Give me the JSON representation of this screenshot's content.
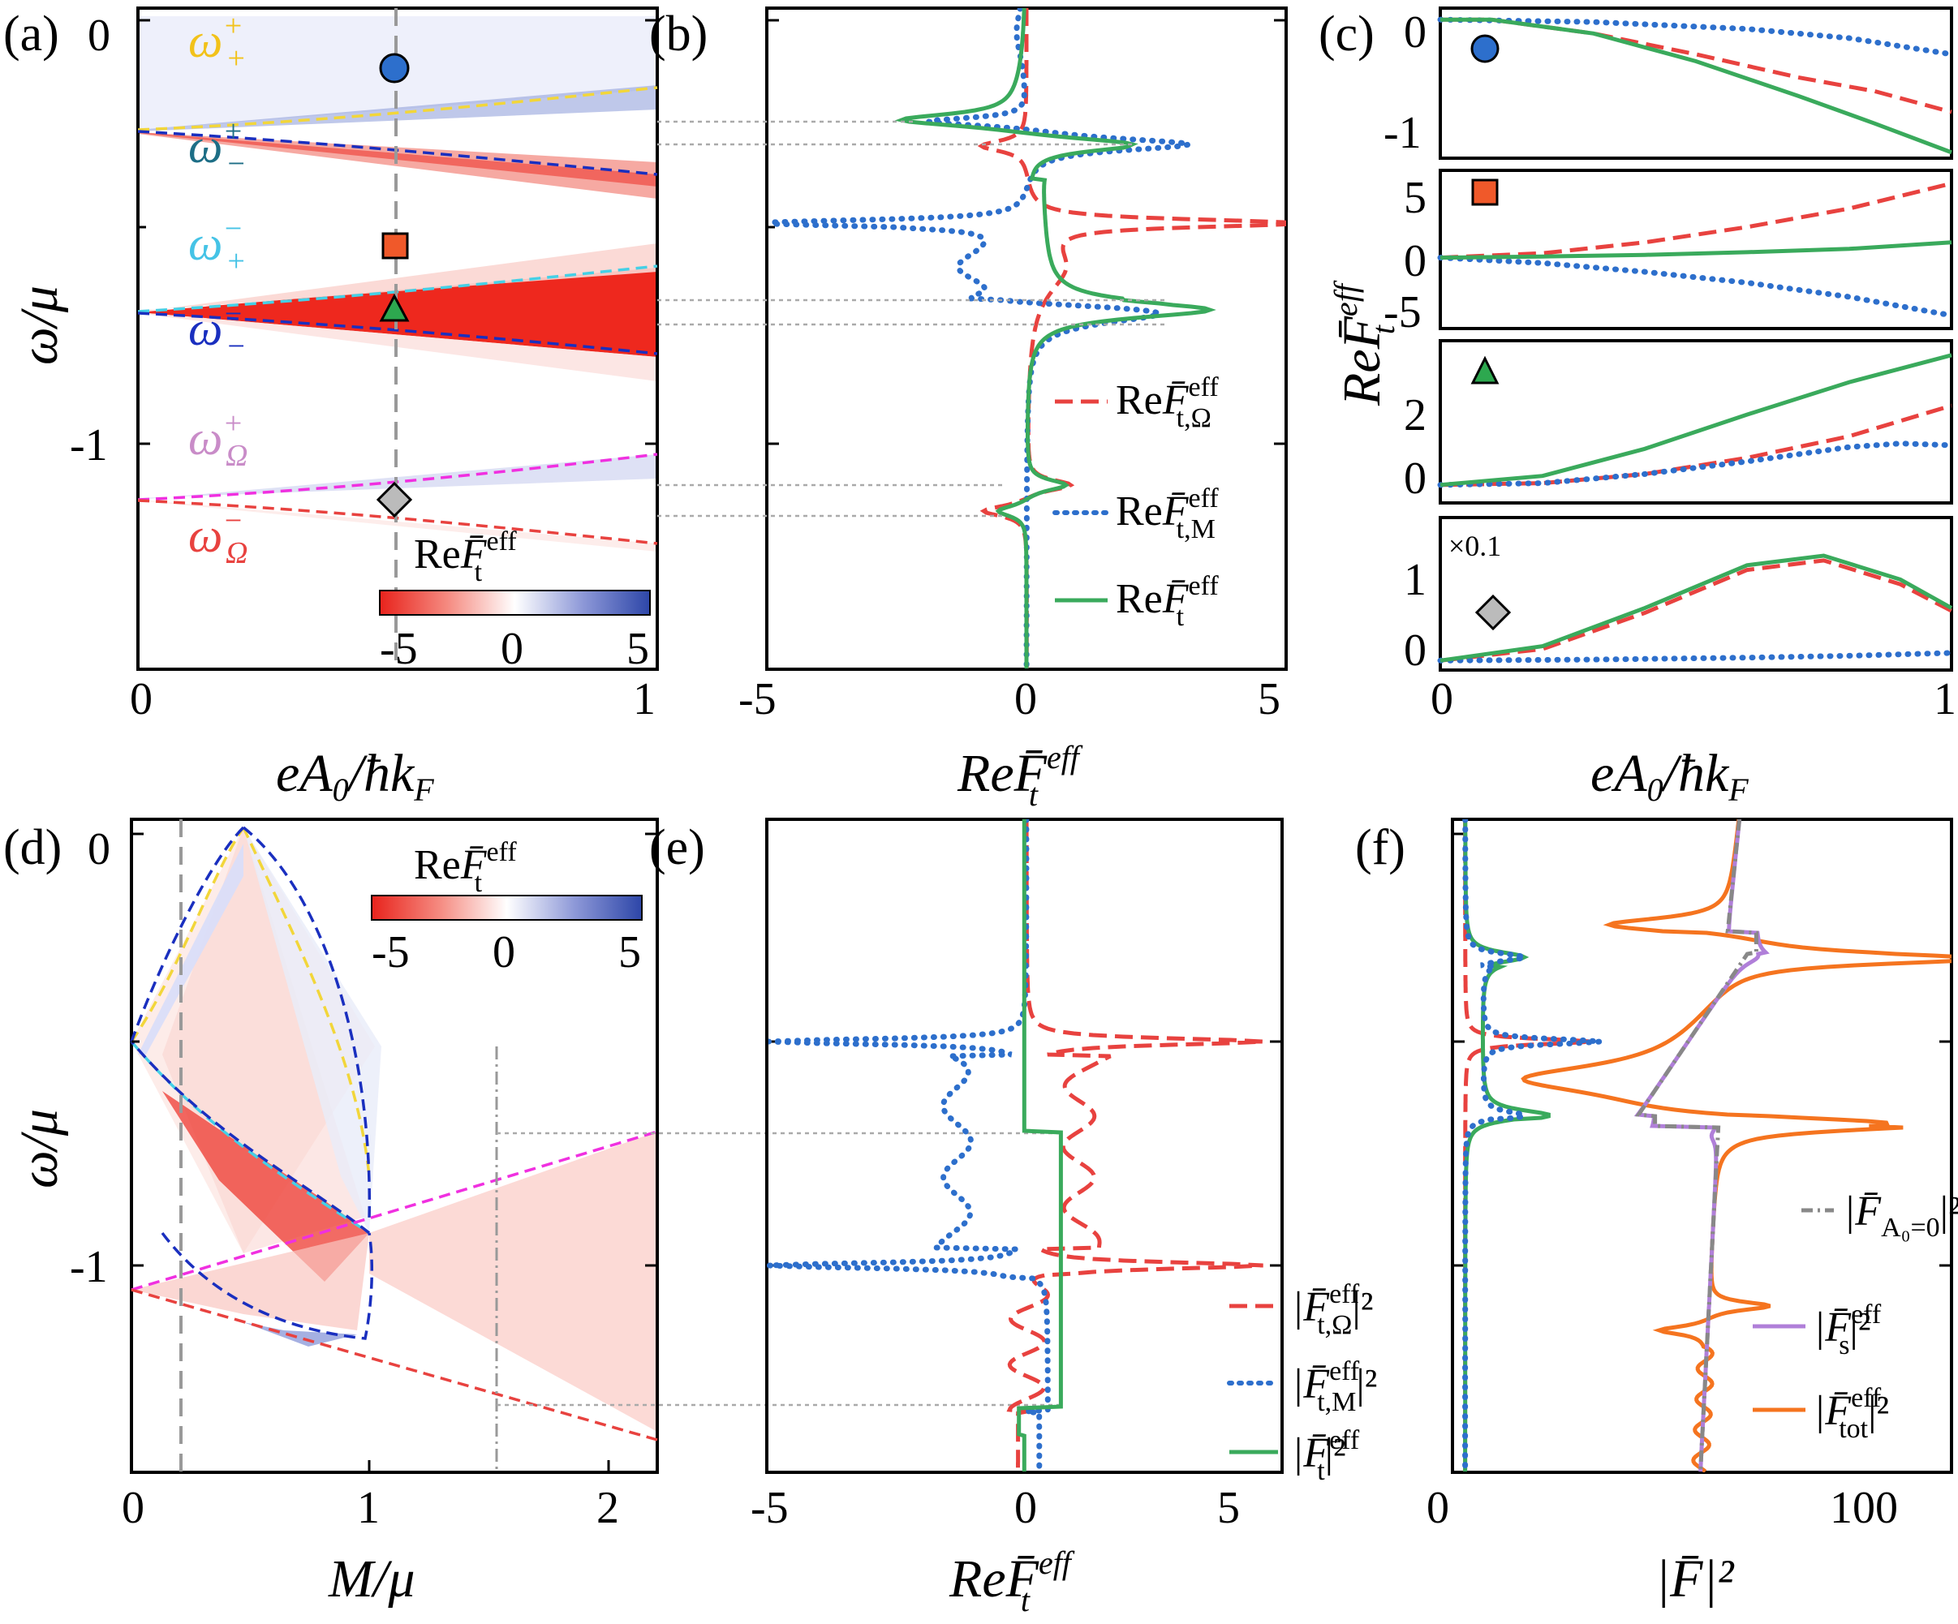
{
  "figure": {
    "panel_labels": [
      "(a)",
      "(b)",
      "(c)",
      "(d)",
      "(e)",
      "(f)"
    ],
    "colors": {
      "red": "#e8423f",
      "blue": "#2d6fcc",
      "green": "#3aaa5c",
      "orange": "#f5741f",
      "purple": "#b07fd9",
      "gray": "#888888",
      "yellow": "#f2d63a",
      "darkblue": "#1a2fbf",
      "cyan": "#45d0e6",
      "magenta": "#f030e0",
      "teal": "#1d6e86"
    }
  },
  "chart_data": [
    {
      "panel": "(a)",
      "type": "heatmap",
      "xlabel": "eA0/ħkF",
      "ylabel": "ω/μ",
      "xlim": [
        0,
        1
      ],
      "ylim": [
        -1.5,
        0.05
      ],
      "xticks": [
        "0",
        "1"
      ],
      "yticks": [
        "0",
        "-1"
      ],
      "marker_x": 0.5,
      "curve_labels": [
        {
          "text": "ω",
          "sup": "+",
          "sub": "+",
          "color": "#f2c21a",
          "y": -0.1
        },
        {
          "text": "ω",
          "sup": "+",
          "sub": "−",
          "color": "#1d6e86",
          "y": -0.33
        },
        {
          "text": "ω",
          "sup": "−",
          "sub": "+",
          "color": "#45c3e6",
          "y": -0.55
        },
        {
          "text": "ω",
          "sup": "−",
          "sub": "−",
          "color": "#1a2fbf",
          "y": -0.77
        },
        {
          "text": "ω",
          "sup": "+",
          "sub": "Ω",
          "color": "#c98cc8",
          "y": -1.0
        },
        {
          "text": "ω",
          "sup": "−",
          "sub": "Ω",
          "color": "#e8423f",
          "y": -1.23
        }
      ],
      "colorbar": {
        "title": "ReF̄t^eff",
        "ticks": [
          "-5",
          "0",
          "5"
        ],
        "range": [
          -5,
          5
        ]
      }
    },
    {
      "panel": "(b)",
      "type": "line",
      "xlabel": "ReF̄t^eff",
      "xlim": [
        -5.2,
        5.2
      ],
      "xticks": [
        "-5",
        "0",
        "5"
      ],
      "series": [
        {
          "name": "ReF̄t,Ω^eff",
          "style": "dashed",
          "color": "#e8423f"
        },
        {
          "name": "ReF̄t,M^eff",
          "style": "dotted",
          "color": "#2d6fcc"
        },
        {
          "name": "ReF̄t^eff",
          "style": "solid",
          "color": "#3aaa5c"
        }
      ]
    },
    {
      "panel": "(c)",
      "type": "line",
      "xlabel": "eA0/ħkF",
      "ylabel": "ReF̄t^eff",
      "xticks": [
        "0",
        "1"
      ],
      "subplots": [
        {
          "marker": "circle",
          "ylim": [
            -1.2,
            0.1
          ],
          "yticks": [
            "0",
            "-1"
          ],
          "red": [
            [
              0,
              0
            ],
            [
              0.1,
              0
            ],
            [
              0.3,
              -0.12
            ],
            [
              0.5,
              -0.3
            ],
            [
              0.7,
              -0.5
            ],
            [
              0.85,
              -0.62
            ],
            [
              1,
              -0.8
            ]
          ],
          "blue": [
            [
              0,
              0
            ],
            [
              0.3,
              -0.02
            ],
            [
              0.6,
              -0.08
            ],
            [
              0.8,
              -0.16
            ],
            [
              1,
              -0.3
            ]
          ],
          "green": [
            [
              0,
              0
            ],
            [
              0.1,
              0
            ],
            [
              0.3,
              -0.12
            ],
            [
              0.5,
              -0.36
            ],
            [
              0.7,
              -0.66
            ],
            [
              0.85,
              -0.9
            ],
            [
              1,
              -1.15
            ]
          ]
        },
        {
          "marker": "square",
          "ylim": [
            -6.5,
            8
          ],
          "yticks": [
            "5",
            "0",
            "-5"
          ],
          "red": [
            [
              0,
              0
            ],
            [
              0.2,
              0.4
            ],
            [
              0.4,
              1.4
            ],
            [
              0.6,
              2.8
            ],
            [
              0.8,
              4.5
            ],
            [
              1,
              6.8
            ]
          ],
          "blue": [
            [
              0,
              0
            ],
            [
              0.2,
              -0.5
            ],
            [
              0.4,
              -1.3
            ],
            [
              0.6,
              -2.3
            ],
            [
              0.8,
              -3.6
            ],
            [
              1,
              -5.3
            ]
          ],
          "green": [
            [
              0,
              0
            ],
            [
              0.2,
              0.1
            ],
            [
              0.4,
              0.25
            ],
            [
              0.6,
              0.5
            ],
            [
              0.8,
              0.8
            ],
            [
              1,
              1.4
            ]
          ]
        },
        {
          "marker": "triangle",
          "ylim": [
            -0.5,
            4
          ],
          "yticks": [
            "2",
            "0"
          ],
          "red": [
            [
              0,
              0
            ],
            [
              0.2,
              0.05
            ],
            [
              0.4,
              0.3
            ],
            [
              0.6,
              0.75
            ],
            [
              0.8,
              1.35
            ],
            [
              1,
              2.2
            ]
          ],
          "blue": [
            [
              0,
              0
            ],
            [
              0.2,
              0.05
            ],
            [
              0.4,
              0.3
            ],
            [
              0.6,
              0.65
            ],
            [
              0.8,
              1.05
            ],
            [
              0.9,
              1.15
            ],
            [
              1,
              1.1
            ]
          ],
          "green": [
            [
              0,
              0
            ],
            [
              0.2,
              0.25
            ],
            [
              0.4,
              1.0
            ],
            [
              0.6,
              1.95
            ],
            [
              0.8,
              2.85
            ],
            [
              1,
              3.6
            ]
          ]
        },
        {
          "marker": "diamond",
          "ylim": [
            -0.1,
            1.5
          ],
          "yticks": [
            "1",
            "0"
          ],
          "annotation": "×0.1",
          "red": [
            [
              0,
              0
            ],
            [
              0.2,
              0.12
            ],
            [
              0.4,
              0.5
            ],
            [
              0.6,
              0.95
            ],
            [
              0.75,
              1.05
            ],
            [
              0.9,
              0.8
            ],
            [
              1,
              0.52
            ]
          ],
          "blue": [
            [
              0,
              0
            ],
            [
              0.3,
              0.01
            ],
            [
              0.6,
              0.03
            ],
            [
              0.8,
              0.05
            ],
            [
              1,
              0.08
            ]
          ],
          "green": [
            [
              0,
              0
            ],
            [
              0.2,
              0.15
            ],
            [
              0.4,
              0.55
            ],
            [
              0.6,
              1.0
            ],
            [
              0.75,
              1.1
            ],
            [
              0.9,
              0.85
            ],
            [
              1,
              0.55
            ]
          ]
        }
      ]
    },
    {
      "panel": "(d)",
      "type": "heatmap",
      "xlabel": "M/μ",
      "ylabel": "ω/μ",
      "xlim": [
        0,
        2.2
      ],
      "ylim": [
        -1.45,
        0.05
      ],
      "xticks": [
        "0",
        "1",
        "2"
      ],
      "yticks": [
        "0",
        "-1"
      ],
      "colorbar": {
        "title": "ReF̄t^eff",
        "ticks": [
          "-5",
          "0",
          "5"
        ],
        "range": [
          -5,
          5
        ]
      }
    },
    {
      "panel": "(e)",
      "type": "line",
      "xlabel": "ReF̄t^eff",
      "xlim": [
        -6,
        6
      ],
      "xticks": [
        "-5",
        "0",
        "5"
      ],
      "series": [
        {
          "name": "|F̄t,Ω^eff|²",
          "style": "dashed",
          "color": "#e8423f"
        },
        {
          "name": "|F̄t,M^eff|²",
          "style": "dotted",
          "color": "#2d6fcc"
        },
        {
          "name": "|F̄t^eff|²",
          "style": "solid",
          "color": "#3aaa5c"
        }
      ]
    },
    {
      "panel": "(f)",
      "type": "line",
      "xlabel": "|F̄|²",
      "xlim": [
        0,
        118
      ],
      "xticks": [
        "0",
        "100"
      ],
      "series": [
        {
          "name": "|F̄A0=0|²",
          "style": "dashdot",
          "color": "#888888"
        },
        {
          "name": "|F̄s^eff|²",
          "style": "solid",
          "color": "#b07fd9"
        },
        {
          "name": "|F̄tot^eff|²",
          "style": "solid",
          "color": "#f5741f"
        }
      ]
    }
  ],
  "texts": {
    "a": {
      "label": "(a)",
      "x0": "0",
      "x1": "1",
      "y0": "0",
      "y1": "-1",
      "xlabel_main": "eA",
      "xlabel_sub": "0",
      "xlabel_rest": "/ħk",
      "xlabel_sub2": "F",
      "ylabel": "ω/μ",
      "cb_re": "Re",
      "cb_F": "F̄",
      "cb_sub": "t",
      "cb_sup": "eff",
      "cb_t0": "-5",
      "cb_t1": "0",
      "cb_t2": "5"
    },
    "b": {
      "label": "(b)",
      "x0": "-5",
      "x1": "0",
      "x2": "5",
      "xl_re": "Re",
      "xl_F": "F̄",
      "xl_sub": "t",
      "xl_sup": "eff",
      "leg1_re": "Re",
      "leg1_F": "F̄",
      "leg1_sub": "t,Ω",
      "leg1_sup": "eff",
      "leg2_re": "Re",
      "leg2_F": "F̄",
      "leg2_sub": "t,M",
      "leg2_sup": "eff",
      "leg3_re": "Re",
      "leg3_F": "F̄",
      "leg3_sub": "t",
      "leg3_sup": "eff"
    },
    "c": {
      "label": "(c)",
      "y1_0": "0",
      "y1_1": "-1",
      "y2_0": "5",
      "y2_1": "0",
      "y2_2": "-5",
      "y3_0": "2",
      "y3_1": "0",
      "y4_0": "1",
      "y4_1": "0",
      "x0": "0",
      "x1": "1",
      "annotation": "×0.1",
      "yl_re": "Re",
      "yl_F": "F̄",
      "yl_sub": "t",
      "yl_sup": "eff"
    },
    "d": {
      "label": "(d)",
      "x0": "0",
      "x1": "1",
      "x2": "2",
      "y0": "0",
      "y1": "-1",
      "xlabel": "M/μ",
      "ylabel": "ω/μ",
      "cb_re": "Re",
      "cb_F": "F̄",
      "cb_sub": "t",
      "cb_sup": "eff",
      "cb_t0": "-5",
      "cb_t1": "0",
      "cb_t2": "5"
    },
    "e": {
      "label": "(e)",
      "x0": "-5",
      "x1": "0",
      "x2": "5",
      "xl_re": "Re",
      "xl_F": "F̄",
      "xl_sub": "t",
      "xl_sup": "eff",
      "leg1_F": "|F̄",
      "leg1_sub": "t,Ω",
      "leg1_sup": "eff",
      "leg1_end": "|²",
      "leg2_F": "|F̄",
      "leg2_sub": "t,M",
      "leg2_sup": "eff",
      "leg2_end": "|²",
      "leg3_F": "|F̄",
      "leg3_sub": "t",
      "leg3_sup": "eff",
      "leg3_end": "|²"
    },
    "f": {
      "label": "(f)",
      "x0": "0",
      "x1": "100",
      "xl": "|F̄|²",
      "leg1_F": "|F̄",
      "leg1_sub": "A₀=0",
      "leg1_end": "|²",
      "leg2_F": "|F̄",
      "leg2_sub": "s",
      "leg2_sup": "eff",
      "leg2_end": "|²",
      "leg3_F": "|F̄",
      "leg3_sub": "tot",
      "leg3_sup": "eff",
      "leg3_end": "|²"
    }
  }
}
